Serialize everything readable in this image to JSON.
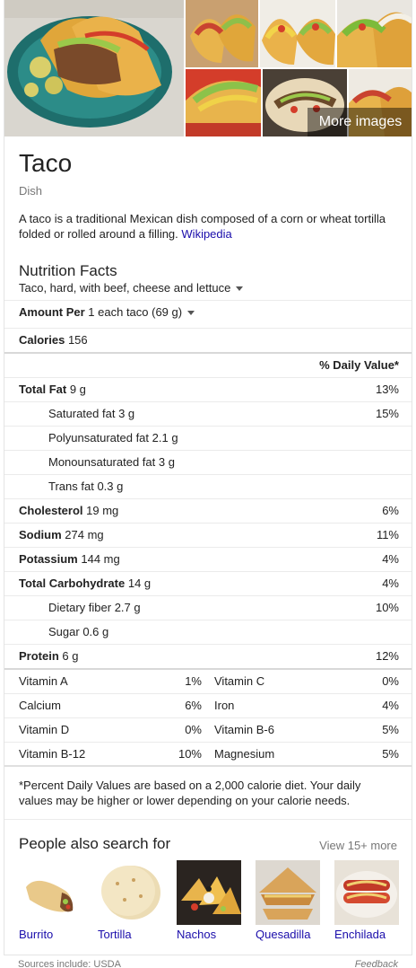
{
  "gallery": {
    "more_images_label": "More images"
  },
  "header": {
    "title": "Taco",
    "subtitle": "Dish",
    "description": "A taco is a traditional Mexican dish composed of a corn or wheat tortilla folded or rolled around a filling.",
    "source_link": "Wikipedia"
  },
  "nutrition": {
    "title": "Nutrition Facts",
    "item": "Taco, hard, with beef, cheese and lettuce",
    "amount_label": "Amount Per",
    "amount_value": "1 each taco (69 g)",
    "calories_label": "Calories",
    "calories_value": "156",
    "daily_value_header": "% Daily Value*",
    "rows": [
      {
        "label": "Total Fat",
        "value": "9 g",
        "pct": "13%"
      },
      {
        "label": "Saturated fat",
        "value": "3 g",
        "pct": "15%"
      },
      {
        "label": "Polyunsaturated fat",
        "value": "2.1 g",
        "pct": ""
      },
      {
        "label": "Monounsaturated fat",
        "value": "3 g",
        "pct": ""
      },
      {
        "label": "Trans fat",
        "value": "0.3 g",
        "pct": ""
      },
      {
        "label": "Cholesterol",
        "value": "19 mg",
        "pct": "6%"
      },
      {
        "label": "Sodium",
        "value": "274 mg",
        "pct": "11%"
      },
      {
        "label": "Potassium",
        "value": "144 mg",
        "pct": "4%"
      },
      {
        "label": "Total Carbohydrate",
        "value": "14 g",
        "pct": "4%"
      },
      {
        "label": "Dietary fiber",
        "value": "2.7 g",
        "pct": "10%"
      },
      {
        "label": "Sugar",
        "value": "0.6 g",
        "pct": ""
      },
      {
        "label": "Protein",
        "value": "6 g",
        "pct": "12%"
      }
    ],
    "vitamins": [
      {
        "left_label": "Vitamin A",
        "left_pct": "1%",
        "right_label": "Vitamin C",
        "right_pct": "0%"
      },
      {
        "left_label": "Calcium",
        "left_pct": "6%",
        "right_label": "Iron",
        "right_pct": "4%"
      },
      {
        "left_label": "Vitamin D",
        "left_pct": "0%",
        "right_label": "Vitamin B-6",
        "right_pct": "5%"
      },
      {
        "left_label": "Vitamin B-12",
        "left_pct": "10%",
        "right_label": "Magnesium",
        "right_pct": "5%"
      }
    ],
    "footnote": "*Percent Daily Values are based on a 2,000 calorie diet. Your daily values may be higher or lower depending on your calorie needs."
  },
  "people_also_search": {
    "title": "People also search for",
    "more_label": "View 15+ more",
    "items": [
      {
        "name": "Burrito"
      },
      {
        "name": "Tortilla"
      },
      {
        "name": "Nachos"
      },
      {
        "name": "Quesadilla"
      },
      {
        "name": "Enchilada"
      }
    ]
  },
  "footer": {
    "sources": "Sources include: USDA",
    "feedback": "Feedback"
  },
  "colors": {
    "link": "#1a0dab",
    "muted": "#777777"
  }
}
